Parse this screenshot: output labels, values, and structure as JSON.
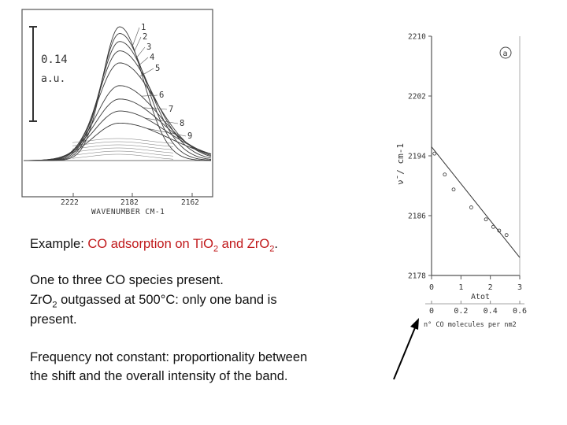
{
  "chart_data": [
    {
      "type": "line",
      "title": "",
      "xlabel": "WAVENUMBER CM-1",
      "ylabel": "",
      "x_ticks": [
        "2222",
        "2182",
        "2162"
      ],
      "scale_bar": {
        "value": "0.14",
        "unit": "a.u."
      },
      "series": [
        {
          "name": "1",
          "peak_height": 1.0
        },
        {
          "name": "2",
          "peak_height": 0.95
        },
        {
          "name": "3",
          "peak_height": 0.89
        },
        {
          "name": "4",
          "peak_height": 0.82
        },
        {
          "name": "5",
          "peak_height": 0.73
        },
        {
          "name": "6",
          "peak_height": 0.56
        },
        {
          "name": "7",
          "peak_height": 0.46
        },
        {
          "name": "8",
          "peak_height": 0.37
        },
        {
          "name": "9",
          "peak_height": 0.28
        }
      ],
      "grid": false
    },
    {
      "type": "scatter",
      "panel_label": "a",
      "ylabel": "ν̄ / cm-1",
      "y_ticks": [
        "2210",
        "2202",
        "2194",
        "2186",
        "2178"
      ],
      "ylim": [
        2178,
        2210
      ],
      "x_axes": [
        {
          "label": "Atot",
          "ticks": [
            "0",
            "1",
            "2",
            "3"
          ]
        },
        {
          "label": "n° CO molecules per nm2",
          "ticks": [
            "0",
            "0.2",
            "0.4",
            "0.6"
          ]
        }
      ],
      "points": [
        {
          "x": 0.1,
          "y": 2194.3
        },
        {
          "x": 0.45,
          "y": 2191.5
        },
        {
          "x": 0.75,
          "y": 2189.5
        },
        {
          "x": 1.35,
          "y": 2187.1
        },
        {
          "x": 1.85,
          "y": 2185.5
        },
        {
          "x": 2.1,
          "y": 2184.5
        },
        {
          "x": 2.3,
          "y": 2184.0
        },
        {
          "x": 2.55,
          "y": 2183.4
        }
      ],
      "trend_line": {
        "x": [
          0.0,
          3.0
        ],
        "y": [
          2195.2,
          2180.4
        ]
      },
      "grid": false
    }
  ],
  "caption": {
    "example_prefix": "Example: ",
    "example_topic": "CO adsorption on Ti",
    "tio2_o": "O",
    "tio2_sub": "2",
    "and": " and Zr",
    "zro2_o": "O",
    "zro2_sub": "2",
    "period": ".",
    "line2": "One to three CO species present.",
    "line3_a": "ZrO",
    "line3_sub": "2",
    "line3_b": " outgassed at 500°C:  only one band is",
    "line4": "present.",
    "line5": " Frequency not constant:  proportionality between",
    "line6": "the shift and the overall intensity of the band."
  }
}
